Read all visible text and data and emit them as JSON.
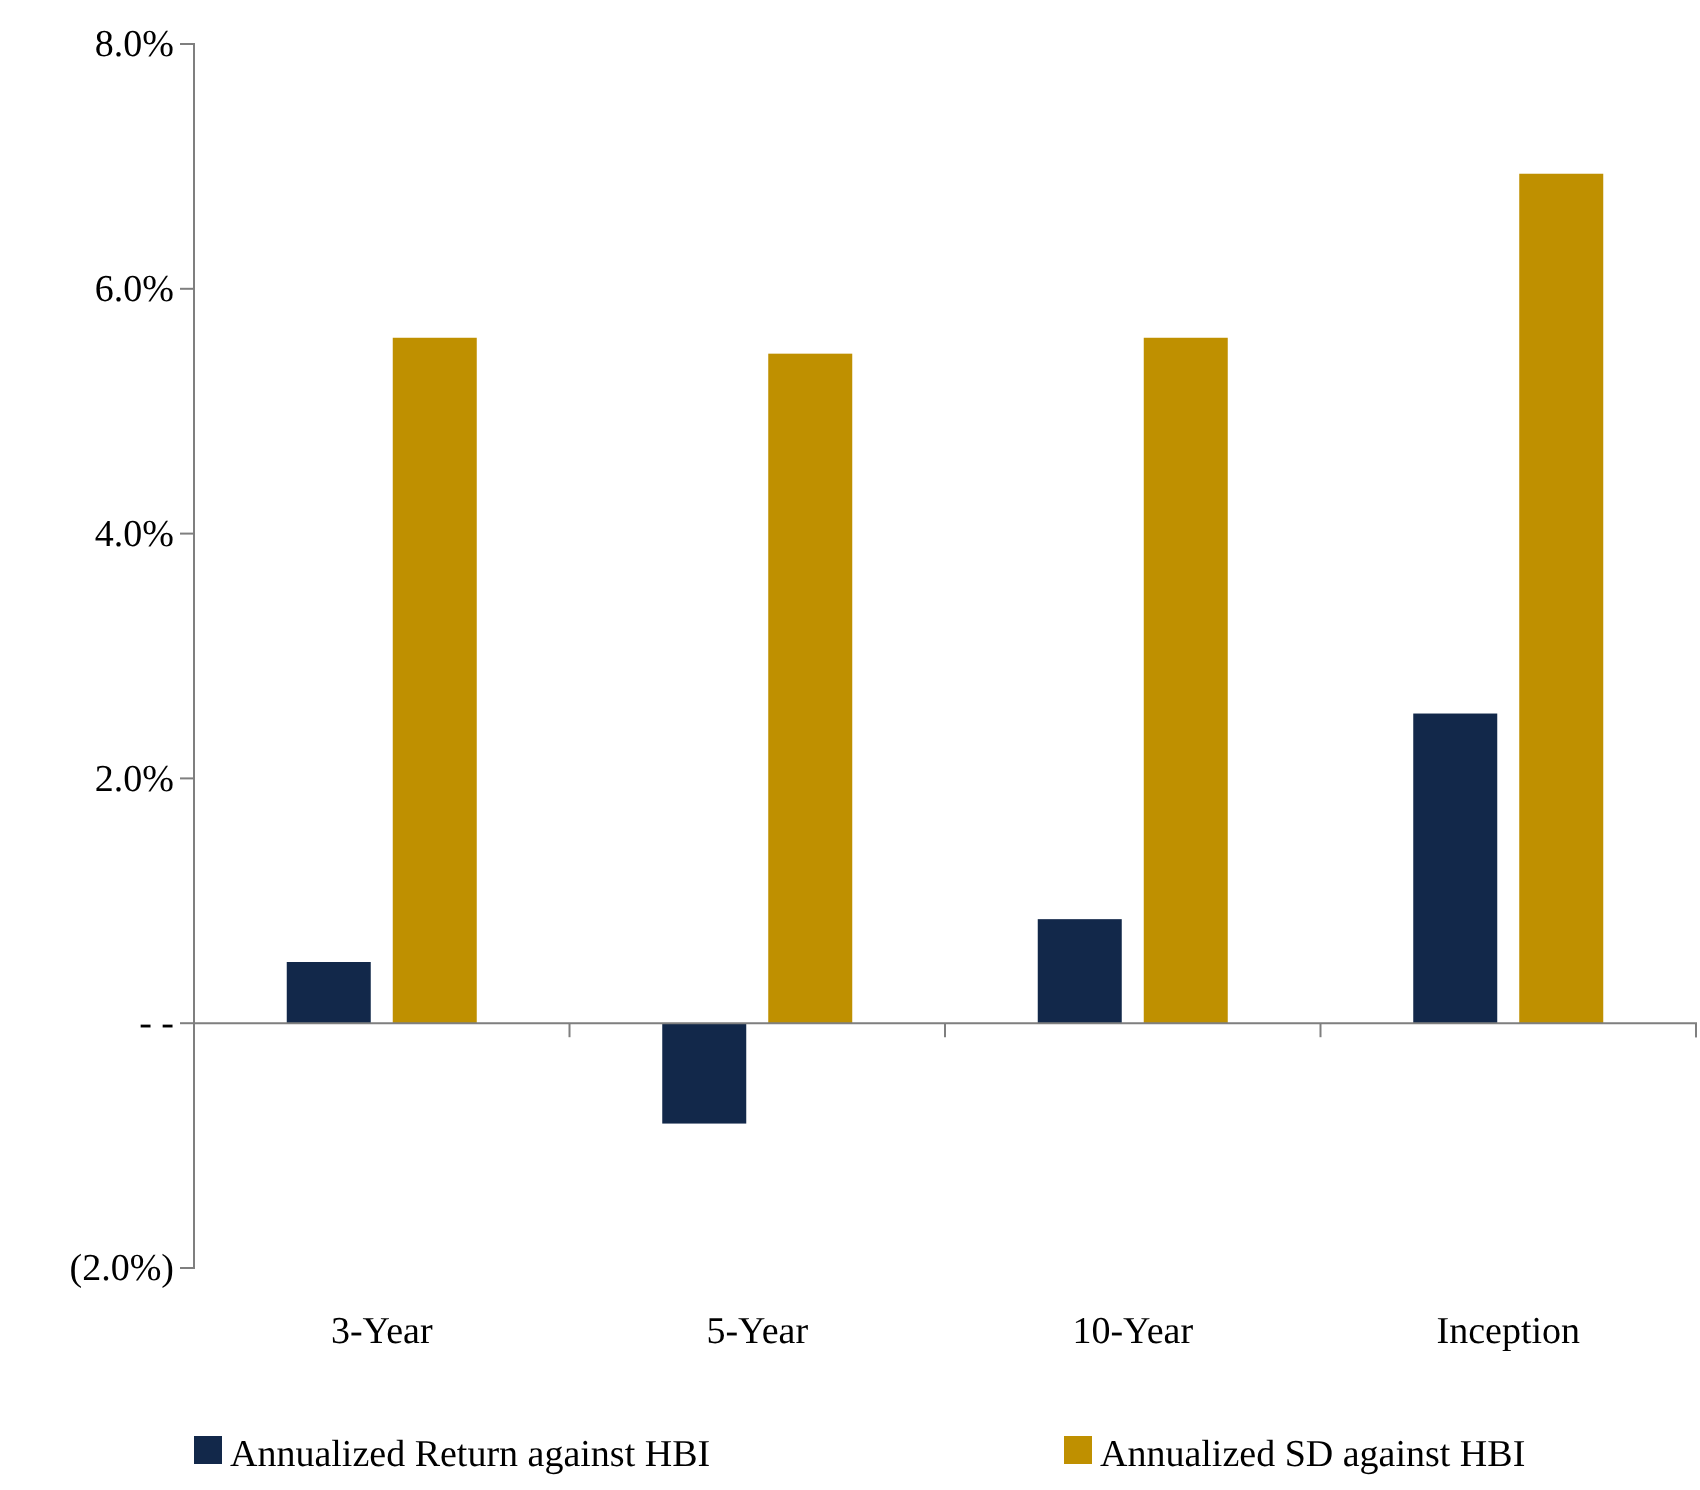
{
  "chart_data": {
    "type": "bar",
    "categories": [
      "3-Year",
      "5-Year",
      "10-Year",
      "Inception"
    ],
    "series": [
      {
        "name": "Annualized Return against HBI",
        "color": "#12284a",
        "values": [
          0.5,
          -0.82,
          0.85,
          2.53
        ]
      },
      {
        "name": "Annualized SD against HBI",
        "color": "#bf9000",
        "values": [
          5.6,
          5.47,
          5.6,
          6.94
        ]
      }
    ],
    "ylim": [
      -2,
      8
    ],
    "yticks": [
      {
        "value": 8,
        "label": "8.0%"
      },
      {
        "value": 6,
        "label": "6.0%"
      },
      {
        "value": 4,
        "label": "4.0%"
      },
      {
        "value": 2,
        "label": "2.0%"
      },
      {
        "value": 0,
        "label": "- -"
      },
      {
        "value": -2,
        "label": "(2.0%)"
      }
    ],
    "legend": "bottom"
  }
}
